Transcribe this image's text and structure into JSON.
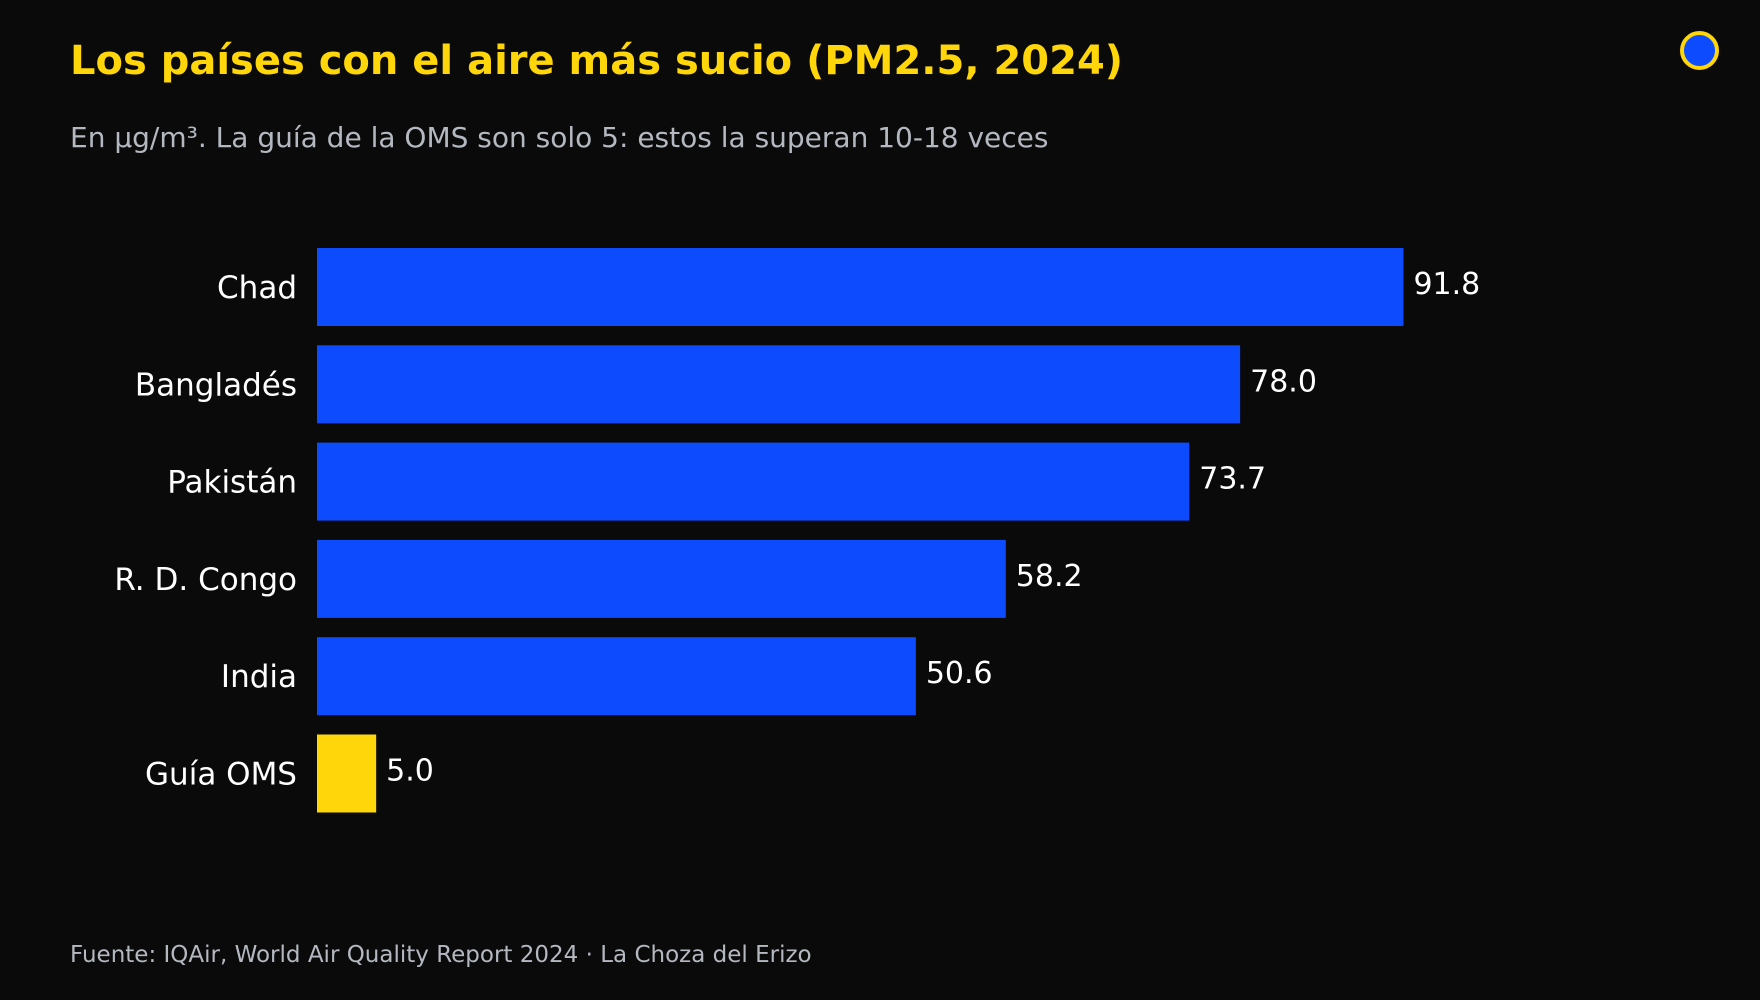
{
  "title": "Los países con el aire más sucio (PM2.5, 2024)",
  "subtitle": "En µg/m³. La guía de la OMS son solo 5: estos la superan 10-18 veces",
  "footer": "Fuente: IQAir, World Air Quality Report 2024  ·  La Choza del Erizo",
  "logo_icon": "circle-logo",
  "colors": {
    "background": "#0a0a0a",
    "accent": "#ffd60a",
    "bar": "#0d4bff",
    "text": "#ffffff",
    "muted": "#b4b8c0"
  },
  "chart_data": {
    "type": "bar",
    "orientation": "horizontal",
    "title": "Los países con el aire más sucio (PM2.5, 2024)",
    "subtitle": "En µg/m³. La guía de la OMS son solo 5: estos la superan 10-18 veces",
    "categories": [
      "Chad",
      "Bangladés",
      "Pakistán",
      "R. D. Congo",
      "India",
      "Guía OMS"
    ],
    "values": [
      91.8,
      78.0,
      73.7,
      58.2,
      50.6,
      5.0
    ],
    "value_labels": [
      "91.8",
      "78.0",
      "73.7",
      "58.2",
      "50.6",
      "5.0"
    ],
    "bar_colors": [
      "#0d4bff",
      "#0d4bff",
      "#0d4bff",
      "#0d4bff",
      "#0d4bff",
      "#ffd60a"
    ],
    "xlim": [
      0,
      100
    ],
    "grid": false,
    "legend": "none"
  }
}
